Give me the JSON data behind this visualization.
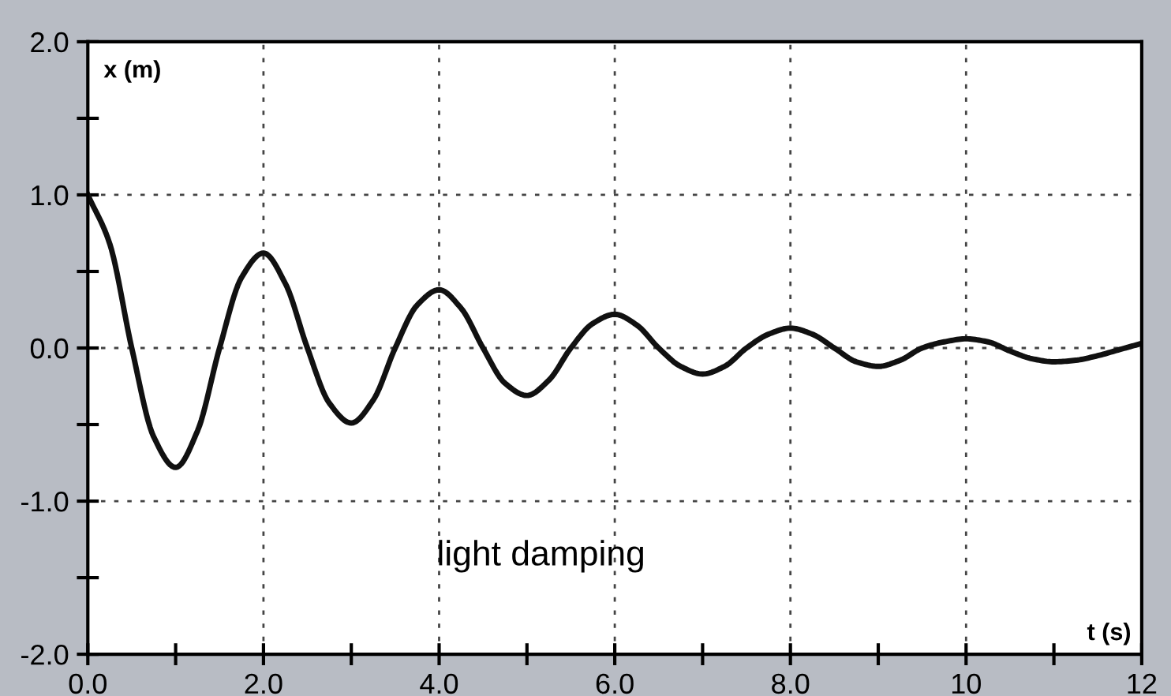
{
  "chart_data": {
    "type": "line",
    "xlabel": "t (s)",
    "ylabel": "x (m)",
    "x": [
      0,
      0.25,
      0.5,
      0.75,
      1,
      1.25,
      1.5,
      1.75,
      2,
      2.25,
      2.5,
      2.75,
      3,
      3.25,
      3.5,
      3.75,
      4,
      4.25,
      4.5,
      4.75,
      5,
      5.25,
      5.5,
      5.75,
      6,
      6.25,
      6.5,
      6.75,
      7,
      7.25,
      7.5,
      7.75,
      8,
      8.25,
      8.5,
      8.75,
      9,
      9.25,
      9.5,
      9.75,
      10,
      10.25,
      10.5,
      10.75,
      11,
      11.25,
      11.5,
      11.75,
      12
    ],
    "series": [
      {
        "color": "#111111",
        "values": [
          1.0,
          0.68,
          0.0,
          -0.58,
          -0.78,
          -0.54,
          0.0,
          0.46,
          0.62,
          0.42,
          0.0,
          -0.36,
          -0.49,
          -0.34,
          0.0,
          0.28,
          0.38,
          0.26,
          0.0,
          -0.23,
          -0.31,
          -0.21,
          0.0,
          0.16,
          0.22,
          0.15,
          0.0,
          -0.12,
          -0.17,
          -0.12,
          0.0,
          0.09,
          0.13,
          0.09,
          0.0,
          -0.09,
          -0.12,
          -0.08,
          0.0,
          0.04,
          0.06,
          0.04,
          -0.02,
          -0.07,
          -0.09,
          -0.08,
          -0.05,
          -0.01,
          0.03
        ]
      }
    ],
    "xlim": [
      0,
      12
    ],
    "ylim": [
      -2,
      2
    ],
    "xticks": [
      {
        "value": 0,
        "label": "0.0"
      },
      {
        "value": 2,
        "label": "2.0"
      },
      {
        "value": 4,
        "label": "4.0"
      },
      {
        "value": 6,
        "label": "6.0"
      },
      {
        "value": 8,
        "label": "8.0"
      },
      {
        "value": 10,
        "label": "10"
      },
      {
        "value": 12,
        "label": "12"
      }
    ],
    "yticks": [
      {
        "value": -2,
        "label": "-2.0"
      },
      {
        "value": -1,
        "label": "-1.0"
      },
      {
        "value": 0,
        "label": "0.0"
      },
      {
        "value": 1,
        "label": "1.0"
      },
      {
        "value": 2,
        "label": "2.0"
      }
    ],
    "grid": true,
    "marker": "none",
    "line_style": "solid",
    "annotations": [
      "light damping"
    ]
  }
}
